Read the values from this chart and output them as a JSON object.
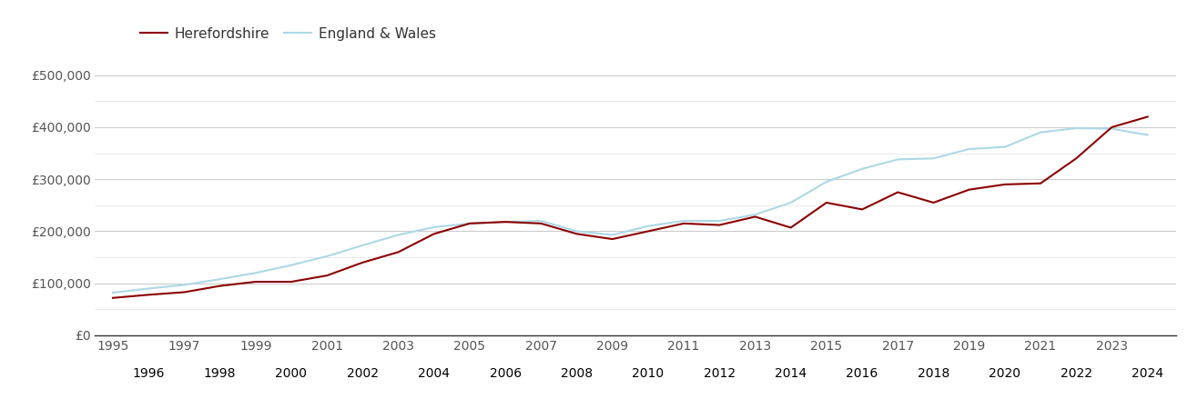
{
  "years": [
    1995,
    1996,
    1997,
    1998,
    1999,
    2000,
    2001,
    2002,
    2003,
    2004,
    2005,
    2006,
    2007,
    2008,
    2009,
    2010,
    2011,
    2012,
    2013,
    2014,
    2015,
    2016,
    2017,
    2018,
    2019,
    2020,
    2021,
    2022,
    2023,
    2024
  ],
  "herefordshire": [
    72000,
    78000,
    83000,
    95000,
    103000,
    103000,
    115000,
    140000,
    160000,
    195000,
    215000,
    218000,
    215000,
    195000,
    185000,
    200000,
    215000,
    212000,
    228000,
    207000,
    255000,
    242000,
    275000,
    255000,
    280000,
    290000,
    292000,
    340000,
    400000,
    420000
  ],
  "england_wales": [
    82000,
    90000,
    97000,
    108000,
    120000,
    135000,
    152000,
    173000,
    193000,
    208000,
    215000,
    218000,
    220000,
    200000,
    193000,
    210000,
    220000,
    220000,
    232000,
    255000,
    295000,
    320000,
    338000,
    340000,
    358000,
    362000,
    390000,
    398000,
    397000,
    385000
  ],
  "herefordshire_color": "#8B0000",
  "england_wales_color": "#ADD8E6",
  "herefordshire_label": "Herefordshire",
  "england_wales_label": "England & Wales",
  "ylim": [
    0,
    550000
  ],
  "yticks_major": [
    0,
    100000,
    200000,
    300000,
    400000,
    500000
  ],
  "yticks_minor": [
    50000,
    150000,
    250000,
    350000,
    450000
  ],
  "ytick_labels": [
    "£0",
    "£100,000",
    "£200,000",
    "£300,000",
    "£400,000",
    "£500,000"
  ],
  "background_color": "#ffffff",
  "grid_color_major": "#cccccc",
  "grid_color_minor": "#e8e8e8",
  "line_width": 1.5,
  "legend_fontsize": 11,
  "tick_fontsize": 10,
  "xlim": [
    1994.5,
    2024.8
  ]
}
